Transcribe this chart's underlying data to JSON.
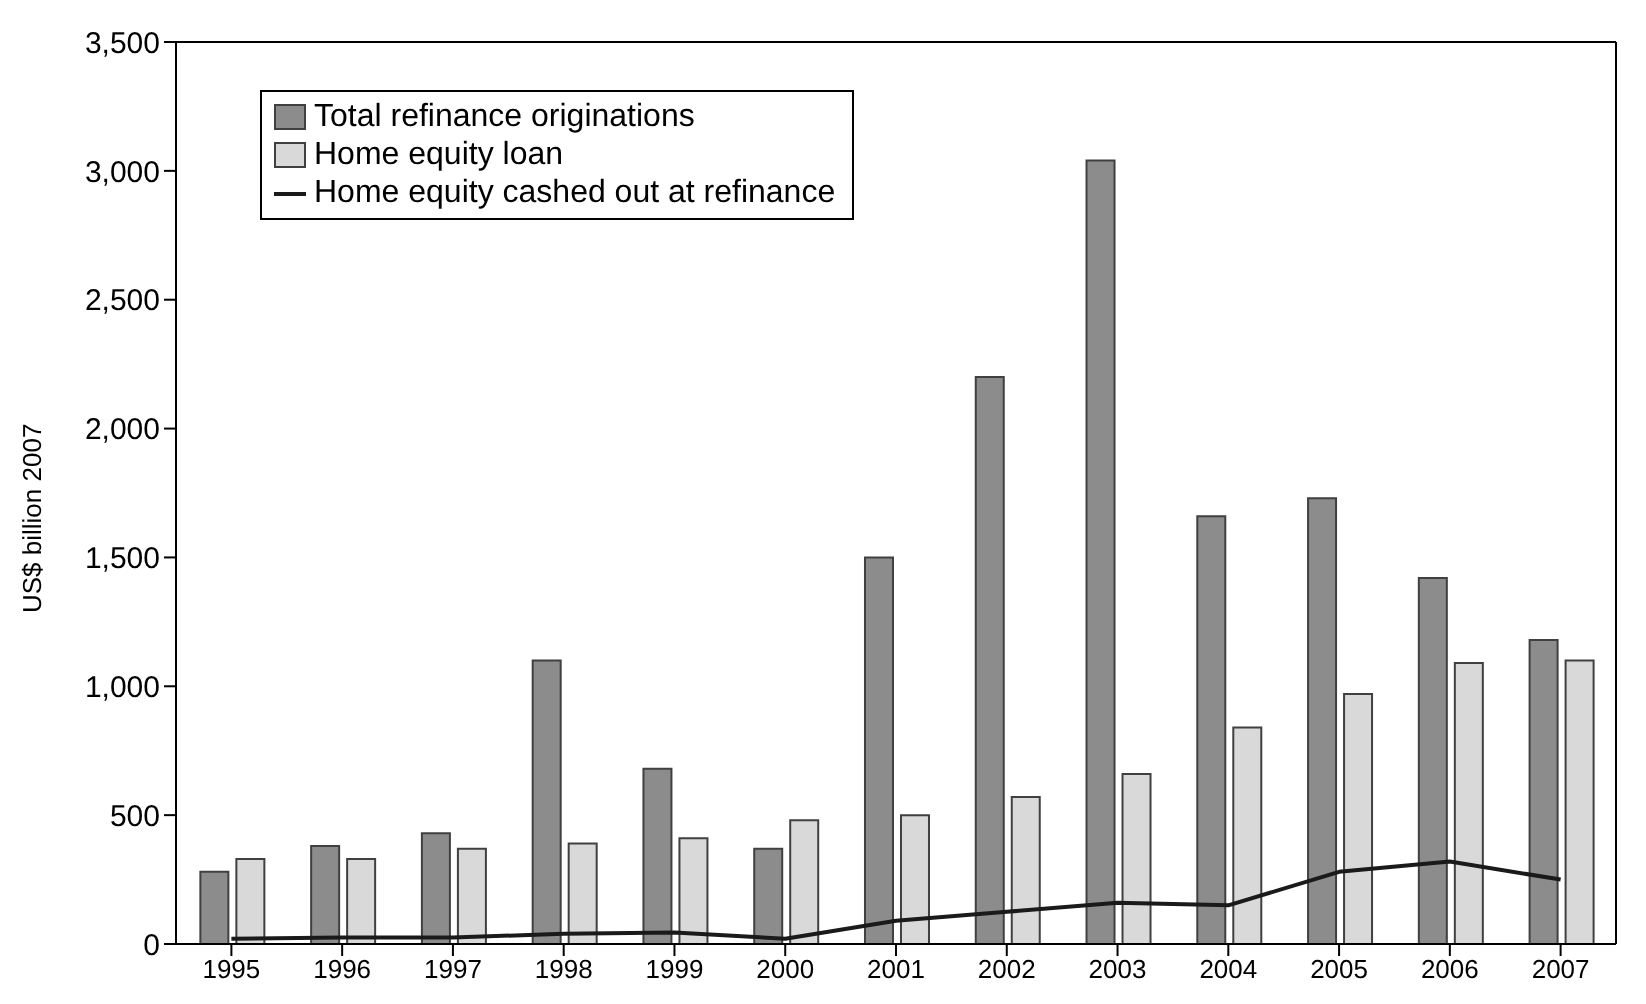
{
  "chart_data": {
    "type": "bar",
    "ylabel": "US$ billion 2007",
    "categories": [
      "1995",
      "1996",
      "1997",
      "1998",
      "1999",
      "2000",
      "2001",
      "2002",
      "2003",
      "2004",
      "2005",
      "2006",
      "2007"
    ],
    "series": [
      {
        "name": "Total refinance originations",
        "color": "#8c8c8c",
        "values": [
          280,
          380,
          430,
          1100,
          680,
          370,
          1500,
          2200,
          3040,
          1660,
          1730,
          1420,
          1180
        ]
      },
      {
        "name": "Home equity loan",
        "color": "#d9d9d9",
        "values": [
          330,
          330,
          370,
          390,
          410,
          480,
          500,
          570,
          660,
          840,
          970,
          1090,
          1100
        ]
      },
      {
        "name": "Home equity cashed out at refinance",
        "type": "line",
        "color": "#1a1a1a",
        "values": [
          20,
          25,
          25,
          40,
          45,
          20,
          90,
          125,
          160,
          150,
          280,
          320,
          250
        ]
      }
    ],
    "ylim": [
      0,
      3500
    ],
    "yticks": [
      0,
      {
        "value": 500,
        "label": "500"
      },
      {
        "value": 1000,
        "label": "1,000"
      },
      {
        "value": 1500,
        "label": "1,500"
      },
      {
        "value": 2000,
        "label": "2,000"
      },
      {
        "value": 2500,
        "label": "2,500"
      },
      {
        "value": 3000,
        "label": "3,000"
      },
      {
        "value": 3500,
        "label": "3,500"
      }
    ],
    "grid": false,
    "legend": "top left",
    "marker": "none",
    "line_style": "solid"
  }
}
